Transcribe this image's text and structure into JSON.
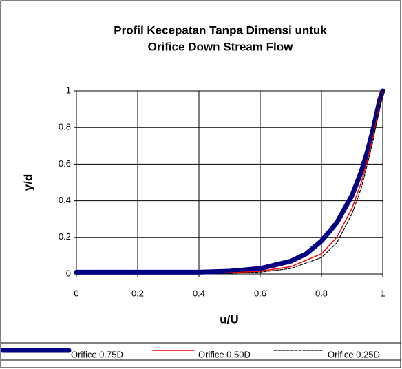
{
  "chart_data": {
    "type": "line",
    "title_lines": [
      "Profil Kecepatan Tanpa Dimensi untuk",
      "Orifice Down Stream Flow"
    ],
    "xlabel": "u/U",
    "ylabel": "y/d",
    "xlim": [
      0,
      1
    ],
    "ylim": [
      0,
      1
    ],
    "xticks": [
      0,
      0.2,
      0.4,
      0.6,
      0.8,
      1
    ],
    "yticks": [
      0,
      0.2,
      0.4,
      0.6,
      0.8,
      1
    ],
    "grid": true,
    "legend": "bottom",
    "series": [
      {
        "name": "Orifice 0.75D",
        "color": "#000080",
        "style": "solid",
        "x": [
          0,
          0.4,
          0.5,
          0.6,
          0.7,
          0.75,
          0.8,
          0.85,
          0.9,
          0.93,
          0.95,
          0.97,
          0.99,
          1
        ],
        "values": [
          0.01,
          0.01,
          0.015,
          0.03,
          0.07,
          0.11,
          0.18,
          0.28,
          0.43,
          0.56,
          0.67,
          0.8,
          0.95,
          1
        ]
      },
      {
        "name": "Orifice 0.50D",
        "color": "#ff0000",
        "style": "solid",
        "x": [
          0.49,
          0.6,
          0.7,
          0.8,
          0.85,
          0.9,
          0.93,
          0.95,
          0.97,
          0.99,
          1
        ],
        "values": [
          0.005,
          0.015,
          0.04,
          0.11,
          0.2,
          0.36,
          0.5,
          0.62,
          0.76,
          0.93,
          1
        ]
      },
      {
        "name": "Orifice 0.25D",
        "color": "#000000",
        "style": "dashed",
        "x": [
          0.49,
          0.6,
          0.7,
          0.8,
          0.85,
          0.9,
          0.93,
          0.95,
          0.97,
          0.99,
          1
        ],
        "values": [
          0.003,
          0.01,
          0.03,
          0.09,
          0.17,
          0.33,
          0.47,
          0.6,
          0.74,
          0.92,
          1
        ]
      }
    ]
  }
}
